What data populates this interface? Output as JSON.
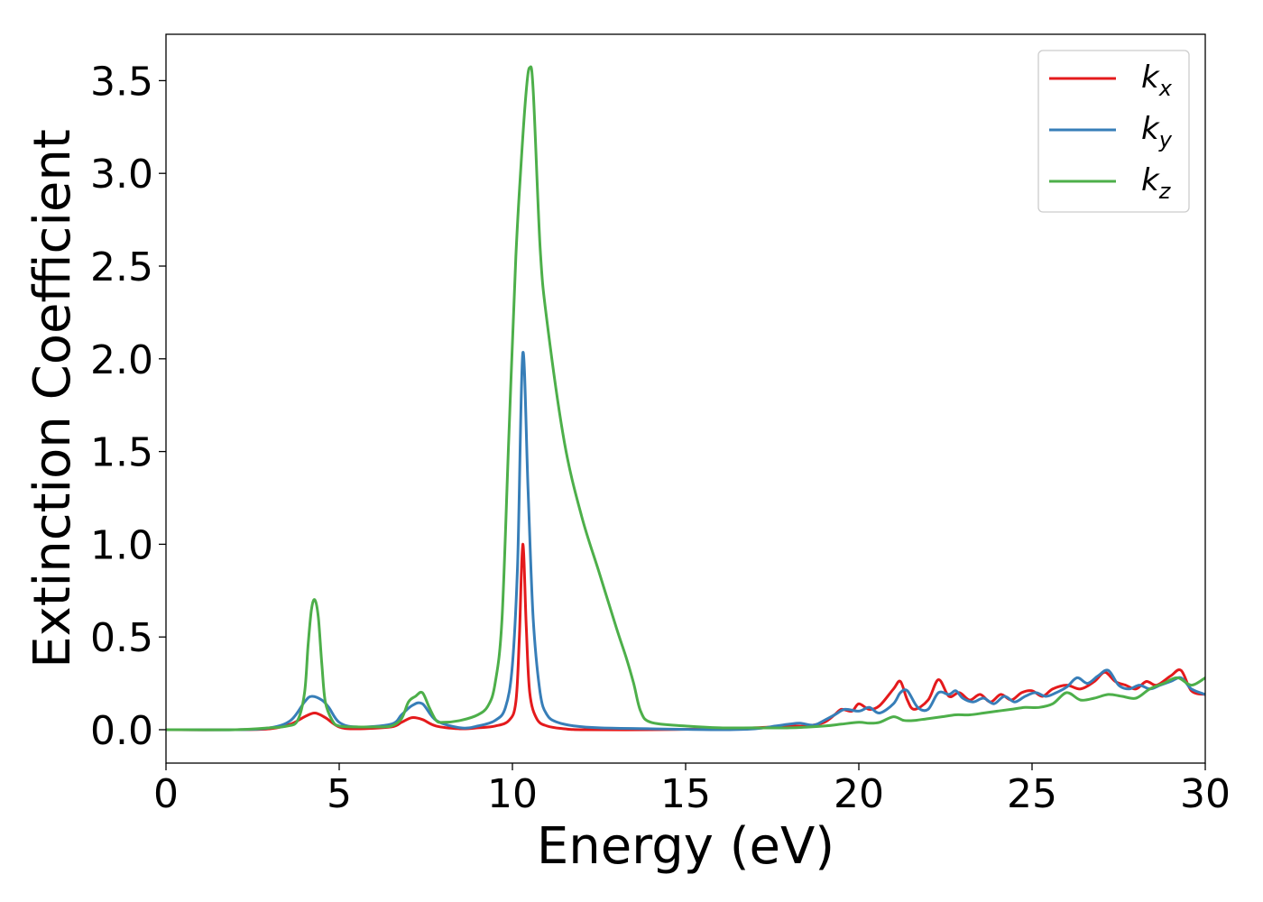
{
  "chart_data": {
    "type": "line",
    "title": "",
    "xlabel": "Energy (eV)",
    "ylabel": "Extinction Coefficient",
    "xlim": [
      0,
      30
    ],
    "ylim": [
      -0.18,
      3.75
    ],
    "xticks": [
      0,
      5,
      10,
      15,
      20,
      25,
      30
    ],
    "xtick_labels": [
      "0",
      "5",
      "10",
      "15",
      "20",
      "25",
      "30"
    ],
    "yticks": [
      0.0,
      0.5,
      1.0,
      1.5,
      2.0,
      2.5,
      3.0,
      3.5
    ],
    "ytick_labels": [
      "0.0",
      "0.5",
      "1.0",
      "1.5",
      "2.0",
      "2.5",
      "3.0",
      "3.5"
    ],
    "grid": false,
    "legend_position": "top-right",
    "series": [
      {
        "name": "k_x",
        "legend_base": "k",
        "legend_sub": "x",
        "color": "#e41a1c",
        "x": [
          0,
          2,
          3,
          3.6,
          4.0,
          4.3,
          4.6,
          5.0,
          5.5,
          6.5,
          6.8,
          7.1,
          7.4,
          7.8,
          8.5,
          9.0,
          9.5,
          9.9,
          10.1,
          10.2,
          10.3,
          10.4,
          10.5,
          10.7,
          11.0,
          11.5,
          12,
          14,
          16,
          17,
          18,
          18.5,
          19,
          19.3,
          19.5,
          19.8,
          20.0,
          20.3,
          20.6,
          21.0,
          21.2,
          21.4,
          21.6,
          22.0,
          22.3,
          22.6,
          22.9,
          23.2,
          23.5,
          23.8,
          24.1,
          24.4,
          24.7,
          25.0,
          25.3,
          25.6,
          26.0,
          26.4,
          26.8,
          27.1,
          27.4,
          27.7,
          28.0,
          28.3,
          28.6,
          29.0,
          29.3,
          29.6,
          30.0
        ],
        "y": [
          0.0,
          0.0,
          0.005,
          0.03,
          0.07,
          0.09,
          0.065,
          0.015,
          0.005,
          0.015,
          0.04,
          0.065,
          0.055,
          0.02,
          0.005,
          0.01,
          0.02,
          0.05,
          0.15,
          0.5,
          1.0,
          0.55,
          0.2,
          0.06,
          0.02,
          0.005,
          0.0,
          0.0,
          0.005,
          0.01,
          0.02,
          0.02,
          0.04,
          0.08,
          0.11,
          0.1,
          0.14,
          0.11,
          0.13,
          0.22,
          0.26,
          0.16,
          0.11,
          0.16,
          0.27,
          0.18,
          0.2,
          0.16,
          0.19,
          0.15,
          0.19,
          0.16,
          0.2,
          0.21,
          0.18,
          0.22,
          0.24,
          0.22,
          0.26,
          0.31,
          0.26,
          0.24,
          0.22,
          0.26,
          0.24,
          0.29,
          0.32,
          0.21,
          0.19
        ]
      },
      {
        "name": "k_y",
        "legend_base": "k",
        "legend_sub": "y",
        "color": "#377eb8",
        "x": [
          0,
          2,
          3,
          3.6,
          4.0,
          4.2,
          4.5,
          4.7,
          5.0,
          5.5,
          6.5,
          6.8,
          7.1,
          7.4,
          7.8,
          8.5,
          9.0,
          9.5,
          9.8,
          10.0,
          10.15,
          10.3,
          10.45,
          10.6,
          10.8,
          11.0,
          11.3,
          11.8,
          12.5,
          14,
          16,
          17,
          17.6,
          18,
          18.3,
          18.7,
          19,
          19.3,
          19.6,
          20.0,
          20.3,
          20.6,
          21.0,
          21.2,
          21.4,
          21.7,
          22.0,
          22.3,
          22.6,
          22.8,
          23.0,
          23.3,
          23.6,
          23.9,
          24.2,
          24.5,
          24.8,
          25.1,
          25.4,
          25.7,
          26.0,
          26.3,
          26.6,
          26.9,
          27.2,
          27.5,
          27.8,
          28.1,
          28.4,
          28.7,
          29.0,
          29.3,
          29.6,
          30.0
        ],
        "y": [
          0.0,
          0.0,
          0.01,
          0.05,
          0.15,
          0.18,
          0.16,
          0.12,
          0.04,
          0.015,
          0.03,
          0.08,
          0.13,
          0.14,
          0.05,
          0.01,
          0.02,
          0.05,
          0.12,
          0.35,
          0.9,
          2.03,
          1.3,
          0.6,
          0.2,
          0.08,
          0.04,
          0.02,
          0.01,
          0.005,
          0.0,
          0.005,
          0.02,
          0.03,
          0.035,
          0.025,
          0.05,
          0.08,
          0.11,
          0.1,
          0.12,
          0.09,
          0.14,
          0.2,
          0.21,
          0.12,
          0.11,
          0.2,
          0.19,
          0.21,
          0.17,
          0.15,
          0.17,
          0.14,
          0.18,
          0.15,
          0.18,
          0.2,
          0.18,
          0.2,
          0.23,
          0.28,
          0.25,
          0.29,
          0.32,
          0.24,
          0.22,
          0.24,
          0.22,
          0.24,
          0.26,
          0.28,
          0.22,
          0.19
        ]
      },
      {
        "name": "k_z",
        "legend_base": "k",
        "legend_sub": "z",
        "color": "#4daf4a",
        "x": [
          0,
          2,
          3,
          3.5,
          3.8,
          4.0,
          4.1,
          4.2,
          4.3,
          4.4,
          4.5,
          4.6,
          4.8,
          5.0,
          5.5,
          6.0,
          6.5,
          6.8,
          7.0,
          7.2,
          7.4,
          7.6,
          7.8,
          8.0,
          8.5,
          9.0,
          9.3,
          9.5,
          9.7,
          9.9,
          10.1,
          10.25,
          10.4,
          10.5,
          10.6,
          10.8,
          11.0,
          11.5,
          12.0,
          12.5,
          13.0,
          13.3,
          13.5,
          13.7,
          14.0,
          15,
          16,
          17,
          18,
          19,
          19.5,
          20.0,
          20.3,
          20.6,
          21.0,
          21.3,
          21.6,
          22.0,
          22.4,
          22.8,
          23.2,
          23.6,
          24.0,
          24.4,
          24.8,
          25.2,
          25.6,
          26.0,
          26.4,
          26.8,
          27.2,
          27.6,
          28.0,
          28.4,
          28.8,
          29.2,
          29.6,
          30.0
        ],
        "y": [
          0.0,
          0.0,
          0.01,
          0.02,
          0.05,
          0.2,
          0.45,
          0.65,
          0.7,
          0.6,
          0.35,
          0.15,
          0.05,
          0.02,
          0.015,
          0.015,
          0.02,
          0.06,
          0.15,
          0.18,
          0.2,
          0.12,
          0.05,
          0.04,
          0.05,
          0.08,
          0.13,
          0.25,
          0.6,
          1.6,
          2.55,
          3.05,
          3.45,
          3.57,
          3.45,
          2.6,
          2.2,
          1.55,
          1.15,
          0.85,
          0.55,
          0.38,
          0.25,
          0.1,
          0.04,
          0.02,
          0.01,
          0.01,
          0.01,
          0.02,
          0.03,
          0.04,
          0.035,
          0.04,
          0.07,
          0.05,
          0.05,
          0.06,
          0.07,
          0.08,
          0.08,
          0.09,
          0.1,
          0.11,
          0.12,
          0.12,
          0.14,
          0.2,
          0.16,
          0.17,
          0.19,
          0.18,
          0.17,
          0.22,
          0.25,
          0.28,
          0.24,
          0.28
        ]
      }
    ]
  }
}
